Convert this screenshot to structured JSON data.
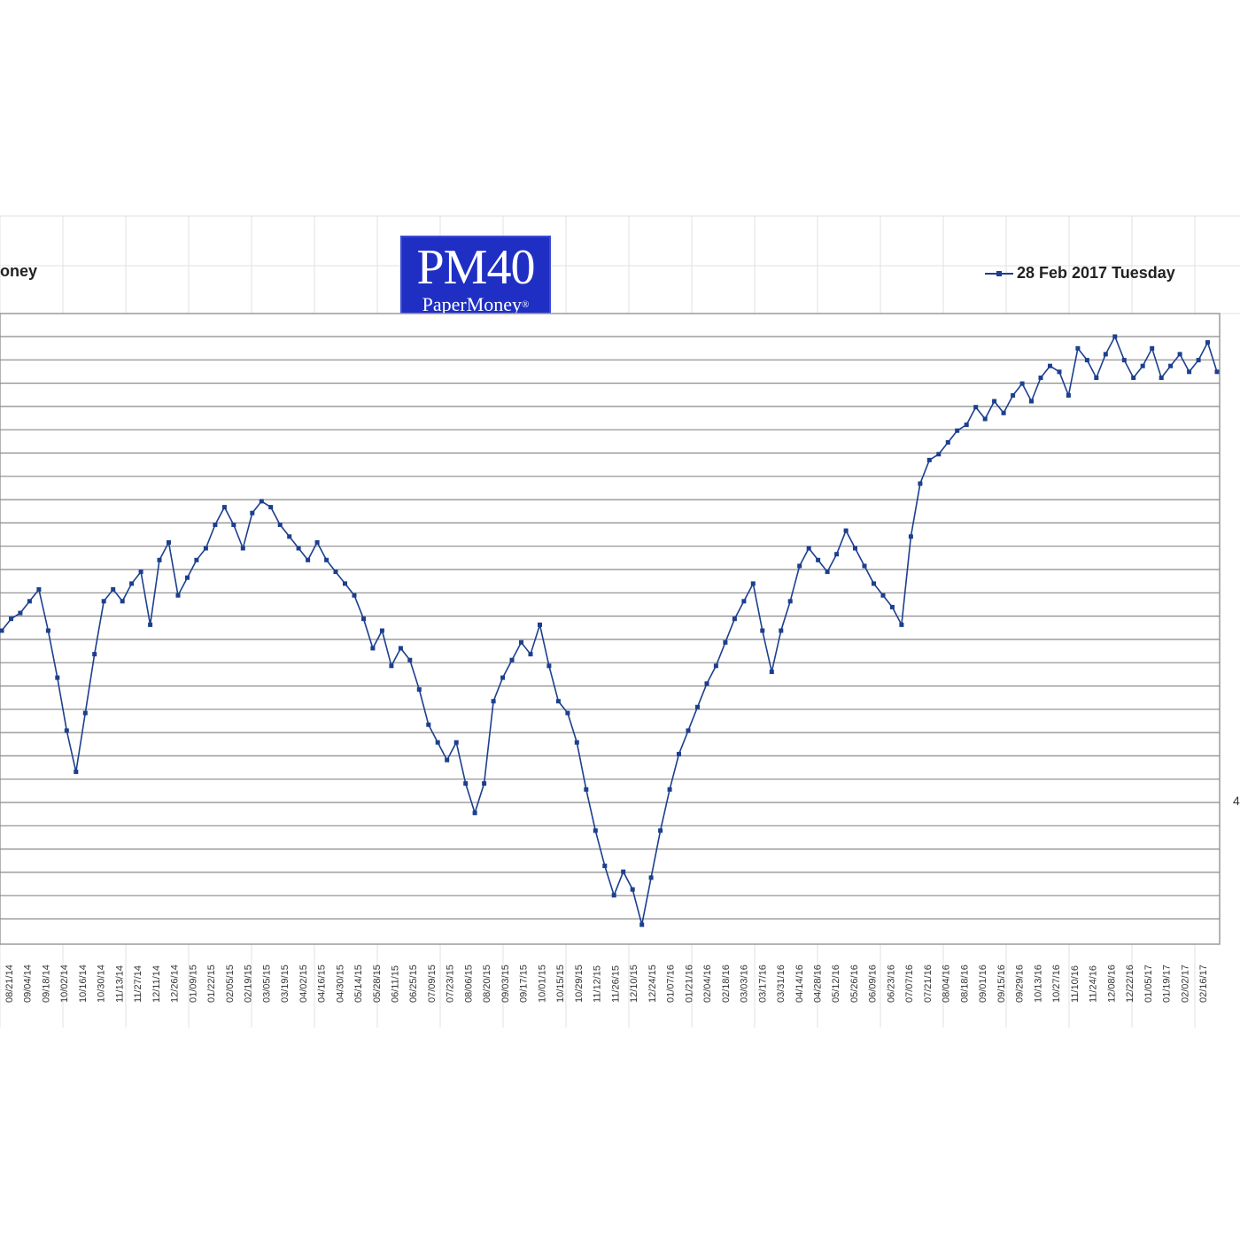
{
  "logo": {
    "title": "PM40",
    "subtitle": "PaperMoney",
    "registered": "®"
  },
  "source_label": "oney",
  "legend": {
    "label": "28 Feb 2017 Tuesday"
  },
  "right_edge_mark": "4",
  "colors": {
    "series": "#1c3f8f",
    "logo_bg": "#1f2fc4",
    "gridline": "#8a8a8a",
    "sheet_grid": "#e2e2e2"
  },
  "chart_data": {
    "type": "line",
    "title": "",
    "xlabel": "",
    "ylabel": "",
    "grid": true,
    "legend_position": "top-right",
    "series": [
      {
        "name": "28 Feb 2017 Tuesday",
        "points": [
          [
            "08/21/14",
            0.5
          ],
          [
            "08/28/14",
            0.52
          ],
          [
            "09/04/14",
            0.53
          ],
          [
            "09/11/14",
            0.55
          ],
          [
            "09/18/14",
            0.57
          ],
          [
            "09/25/14",
            0.5
          ],
          [
            "10/02/14",
            0.42
          ],
          [
            "10/09/14",
            0.33
          ],
          [
            "10/16/14",
            0.26
          ],
          [
            "10/23/14",
            0.36
          ],
          [
            "10/30/14",
            0.46
          ],
          [
            "11/06/14",
            0.55
          ],
          [
            "11/13/14",
            0.57
          ],
          [
            "11/20/14",
            0.55
          ],
          [
            "11/27/14",
            0.58
          ],
          [
            "12/04/14",
            0.6
          ],
          [
            "12/11/14",
            0.51
          ],
          [
            "12/18/14",
            0.62
          ],
          [
            "12/25/14",
            0.65
          ],
          [
            "01/01/15",
            0.56
          ],
          [
            "01/08/15",
            0.59
          ],
          [
            "01/15/15",
            0.62
          ],
          [
            "01/22/15",
            0.64
          ],
          [
            "01/29/15",
            0.68
          ],
          [
            "02/05/15",
            0.71
          ],
          [
            "02/12/15",
            0.68
          ],
          [
            "02/19/15",
            0.64
          ],
          [
            "02/26/15",
            0.7
          ],
          [
            "03/05/15",
            0.72
          ],
          [
            "03/12/15",
            0.71
          ],
          [
            "03/19/15",
            0.68
          ],
          [
            "03/26/15",
            0.66
          ],
          [
            "04/02/15",
            0.64
          ],
          [
            "04/09/15",
            0.62
          ],
          [
            "04/16/15",
            0.65
          ],
          [
            "04/23/15",
            0.62
          ],
          [
            "04/30/15",
            0.6
          ],
          [
            "05/07/15",
            0.58
          ],
          [
            "05/14/15",
            0.56
          ],
          [
            "05/21/15",
            0.52
          ],
          [
            "05/28/15",
            0.47
          ],
          [
            "06/04/15",
            0.5
          ],
          [
            "06/11/15",
            0.44
          ],
          [
            "06/18/15",
            0.47
          ],
          [
            "06/25/15",
            0.45
          ],
          [
            "07/02/15",
            0.4
          ],
          [
            "07/09/15",
            0.34
          ],
          [
            "07/16/15",
            0.31
          ],
          [
            "07/23/15",
            0.28
          ],
          [
            "07/30/15",
            0.31
          ],
          [
            "08/06/15",
            0.24
          ],
          [
            "08/13/15",
            0.19
          ],
          [
            "08/20/15",
            0.24
          ],
          [
            "08/27/15",
            0.38
          ],
          [
            "09/03/15",
            0.42
          ],
          [
            "09/10/15",
            0.45
          ],
          [
            "09/17/15",
            0.48
          ],
          [
            "09/24/15",
            0.46
          ],
          [
            "10/01/15",
            0.51
          ],
          [
            "10/08/15",
            0.44
          ],
          [
            "10/15/15",
            0.38
          ],
          [
            "10/22/15",
            0.36
          ],
          [
            "10/29/15",
            0.31
          ],
          [
            "11/05/15",
            0.23
          ],
          [
            "11/12/15",
            0.16
          ],
          [
            "11/19/15",
            0.1
          ],
          [
            "11/26/15",
            0.05
          ],
          [
            "12/03/15",
            0.09
          ],
          [
            "12/10/15",
            0.06
          ],
          [
            "12/17/15",
            0.0
          ],
          [
            "12/24/15",
            0.08
          ],
          [
            "12/31/15",
            0.16
          ],
          [
            "01/07/16",
            0.23
          ],
          [
            "01/14/16",
            0.29
          ],
          [
            "01/21/16",
            0.33
          ],
          [
            "01/28/16",
            0.37
          ],
          [
            "02/04/16",
            0.41
          ],
          [
            "02/11/16",
            0.44
          ],
          [
            "02/18/16",
            0.48
          ],
          [
            "02/25/16",
            0.52
          ],
          [
            "03/03/16",
            0.55
          ],
          [
            "03/10/16",
            0.58
          ],
          [
            "03/17/16",
            0.5
          ],
          [
            "03/24/16",
            0.43
          ],
          [
            "03/31/16",
            0.5
          ],
          [
            "04/07/16",
            0.55
          ],
          [
            "04/14/16",
            0.61
          ],
          [
            "04/21/16",
            0.64
          ],
          [
            "04/28/16",
            0.62
          ],
          [
            "05/05/16",
            0.6
          ],
          [
            "05/12/16",
            0.63
          ],
          [
            "05/19/16",
            0.67
          ],
          [
            "05/26/16",
            0.64
          ],
          [
            "06/02/16",
            0.61
          ],
          [
            "06/09/16",
            0.58
          ],
          [
            "06/16/16",
            0.56
          ],
          [
            "06/23/16",
            0.54
          ],
          [
            "06/30/16",
            0.51
          ],
          [
            "07/07/16",
            0.66
          ],
          [
            "07/14/16",
            0.75
          ],
          [
            "07/21/16",
            0.79
          ],
          [
            "07/28/16",
            0.8
          ],
          [
            "08/04/16",
            0.82
          ],
          [
            "08/11/16",
            0.84
          ],
          [
            "08/18/16",
            0.85
          ],
          [
            "08/25/16",
            0.88
          ],
          [
            "09/01/16",
            0.86
          ],
          [
            "09/08/16",
            0.89
          ],
          [
            "09/15/16",
            0.87
          ],
          [
            "09/22/16",
            0.9
          ],
          [
            "09/29/16",
            0.92
          ],
          [
            "10/06/16",
            0.89
          ],
          [
            "10/13/16",
            0.93
          ],
          [
            "10/20/16",
            0.95
          ],
          [
            "10/27/16",
            0.94
          ],
          [
            "11/03/16",
            0.9
          ],
          [
            "11/10/16",
            0.98
          ],
          [
            "11/17/16",
            0.96
          ],
          [
            "11/24/16",
            0.93
          ],
          [
            "12/01/16",
            0.97
          ],
          [
            "12/08/16",
            1.0
          ],
          [
            "12/15/16",
            0.96
          ],
          [
            "12/22/16",
            0.93
          ],
          [
            "12/29/16",
            0.95
          ],
          [
            "01/05/17",
            0.98
          ],
          [
            "01/12/17",
            0.93
          ],
          [
            "01/19/17",
            0.95
          ],
          [
            "01/26/17",
            0.97
          ],
          [
            "02/02/17",
            0.94
          ],
          [
            "02/09/17",
            0.96
          ],
          [
            "02/16/17",
            0.99
          ],
          [
            "02/23/17",
            0.94
          ]
        ]
      }
    ],
    "x_tick_labels": [
      "08/21/14",
      "09/04/14",
      "09/18/14",
      "10/02/14",
      "10/16/14",
      "10/30/14",
      "11/13/14",
      "11/27/14",
      "12/11/14",
      "12/26/14",
      "01/09/15",
      "01/22/15",
      "02/05/15",
      "02/19/15",
      "03/05/15",
      "03/19/15",
      "04/02/15",
      "04/16/15",
      "04/30/15",
      "05/14/15",
      "05/28/15",
      "06/11/15",
      "06/25/15",
      "07/09/15",
      "07/23/15",
      "08/06/15",
      "08/20/15",
      "09/03/15",
      "09/17/15",
      "10/01/15",
      "10/15/15",
      "10/29/15",
      "11/12/15",
      "11/26/15",
      "12/10/15",
      "12/24/15",
      "01/07/16",
      "01/21/16",
      "02/04/16",
      "02/18/16",
      "03/03/16",
      "03/17/16",
      "03/31/16",
      "04/14/16",
      "04/28/16",
      "05/12/16",
      "05/26/16",
      "06/09/16",
      "06/23/16",
      "07/07/16",
      "07/21/16",
      "08/04/16",
      "08/18/16",
      "09/01/16",
      "09/15/16",
      "09/29/16",
      "10/13/16",
      "10/27/16",
      "11/10/16",
      "11/24/16",
      "12/08/16",
      "12/22/16",
      "01/05/17",
      "01/19/17",
      "02/02/17",
      "02/16/17"
    ]
  }
}
